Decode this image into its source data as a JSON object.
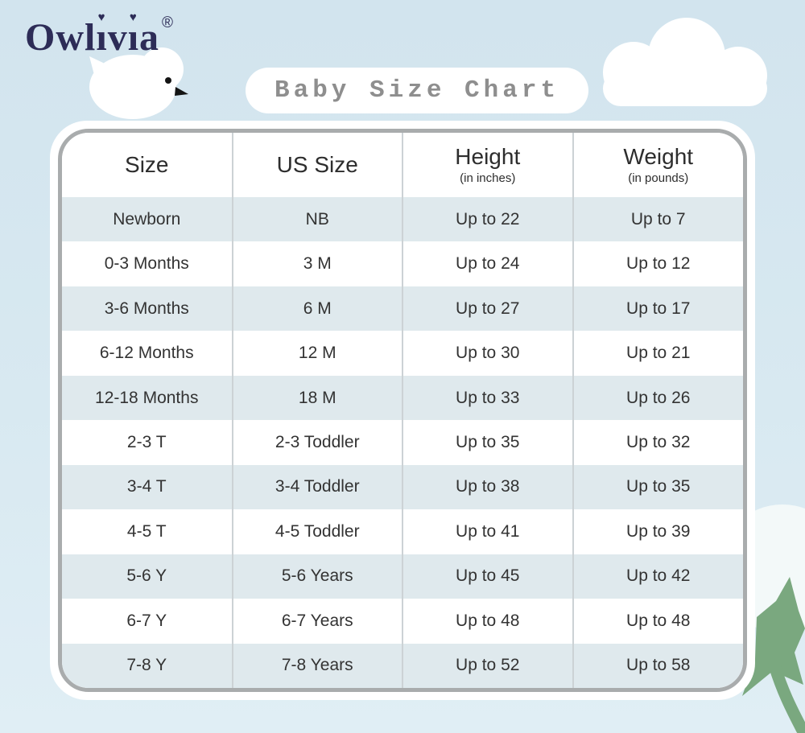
{
  "brand": {
    "name": "Owlivia",
    "registered_mark": "®"
  },
  "title": "Baby Size Chart",
  "table": {
    "headers": [
      {
        "label": "Size",
        "sub": ""
      },
      {
        "label": "US Size",
        "sub": ""
      },
      {
        "label": "Height",
        "sub": "(in inches)"
      },
      {
        "label": "Weight",
        "sub": "(in pounds)"
      }
    ],
    "rows": [
      {
        "size": "Newborn",
        "us_size": "NB",
        "height": "Up to 22",
        "weight": "Up to 7"
      },
      {
        "size": "0-3 Months",
        "us_size": "3 M",
        "height": "Up to 24",
        "weight": "Up to 12"
      },
      {
        "size": "3-6 Months",
        "us_size": "6 M",
        "height": "Up to 27",
        "weight": "Up to 17"
      },
      {
        "size": "6-12 Months",
        "us_size": "12 M",
        "height": "Up to 30",
        "weight": "Up to 21"
      },
      {
        "size": "12-18 Months",
        "us_size": "18 M",
        "height": "Up to 33",
        "weight": "Up to 26"
      },
      {
        "size": "2-3 T",
        "us_size": "2-3 Toddler",
        "height": "Up to 35",
        "weight": "Up to 32"
      },
      {
        "size": "3-4 T",
        "us_size": "3-4 Toddler",
        "height": "Up to 38",
        "weight": "Up to 35"
      },
      {
        "size": "4-5 T",
        "us_size": "4-5 Toddler",
        "height": "Up to 41",
        "weight": "Up to 39"
      },
      {
        "size": "5-6 Y",
        "us_size": "5-6 Years",
        "height": "Up to 45",
        "weight": "Up to 42"
      },
      {
        "size": "6-7 Y",
        "us_size": "6-7 Years",
        "height": "Up to 48",
        "weight": "Up to 48"
      },
      {
        "size": "7-8 Y",
        "us_size": "7-8 Years",
        "height": "Up to 52",
        "weight": "Up to 58"
      }
    ]
  },
  "chart_data": {
    "type": "table",
    "title": "Baby Size Chart",
    "columns": [
      "Size",
      "US Size",
      "Height (in inches)",
      "Weight (in pounds)"
    ],
    "rows": [
      [
        "Newborn",
        "NB",
        "Up to 22",
        "Up to 7"
      ],
      [
        "0-3 Months",
        "3 M",
        "Up to 24",
        "Up to 12"
      ],
      [
        "3-6 Months",
        "6 M",
        "Up to 27",
        "Up to 17"
      ],
      [
        "6-12 Months",
        "12 M",
        "Up to 30",
        "Up to 21"
      ],
      [
        "12-18 Months",
        "18 M",
        "Up to 33",
        "Up to 26"
      ],
      [
        "2-3 T",
        "2-3 Toddler",
        "Up to 35",
        "Up to 32"
      ],
      [
        "3-4 T",
        "3-4 Toddler",
        "Up to 38",
        "Up to 35"
      ],
      [
        "4-5 T",
        "4-5 Toddler",
        "Up to 41",
        "Up to 39"
      ],
      [
        "5-6 Y",
        "5-6 Years",
        "Up to 45",
        "Up to 42"
      ],
      [
        "6-7 Y",
        "6-7 Years",
        "Up to 48",
        "Up to 48"
      ],
      [
        "7-8 Y",
        "7-8 Years",
        "Up to 52",
        "Up to 58"
      ]
    ]
  },
  "colors": {
    "background_top": "#d2e4ee",
    "background_bottom": "#e0eef5",
    "row_stripe": "#dfe9ed",
    "table_border": "#a9acad",
    "logo_navy": "#2d2c57",
    "title_gray": "#8e8e8e",
    "cotton_green": "#7aa87f"
  }
}
